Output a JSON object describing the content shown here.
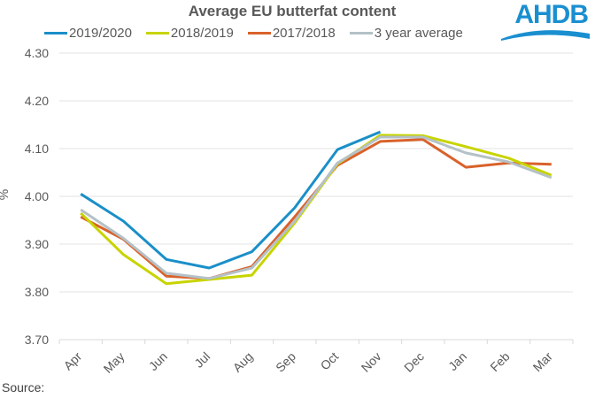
{
  "chart_data": {
    "type": "line",
    "title": "Average EU butterfat content",
    "xlabel": "",
    "ylabel": "%",
    "categories": [
      "Apr",
      "May",
      "Jun",
      "Jul",
      "Aug",
      "Sep",
      "Oct",
      "Nov",
      "Dec",
      "Jan",
      "Feb",
      "Mar"
    ],
    "ylim": [
      3.7,
      4.3
    ],
    "yticks": [
      "4.30",
      "4.20",
      "4.10",
      "4.00",
      "3.90",
      "3.80",
      "3.70"
    ],
    "ytick_values": [
      4.3,
      4.2,
      4.1,
      4.0,
      3.9,
      3.8,
      3.7
    ],
    "grid": true,
    "legend_position": "top",
    "series": [
      {
        "name": "2019/2020",
        "color": "#1a8fc8",
        "values": [
          4.005,
          3.948,
          3.868,
          3.85,
          3.884,
          3.976,
          4.098,
          4.135,
          null,
          null,
          null,
          null
        ]
      },
      {
        "name": "2018/2019",
        "color": "#c8d400",
        "values": [
          3.965,
          3.878,
          3.817,
          3.826,
          3.835,
          3.944,
          4.068,
          4.128,
          4.127,
          4.104,
          4.08,
          4.044
        ]
      },
      {
        "name": "2017/2018",
        "color": "#d9622b",
        "values": [
          3.957,
          3.91,
          3.833,
          3.828,
          3.853,
          3.957,
          4.065,
          4.115,
          4.119,
          4.061,
          4.07,
          4.067
        ]
      },
      {
        "name": "3 year average",
        "color": "#b4c1c7",
        "values": [
          3.972,
          3.912,
          3.839,
          3.828,
          3.85,
          3.948,
          4.07,
          4.124,
          4.124,
          4.091,
          4.072,
          4.039
        ]
      }
    ]
  },
  "logo": {
    "text": "AHDB",
    "color": "#1a8fd0"
  },
  "footer": {
    "source_label": "Source:"
  }
}
